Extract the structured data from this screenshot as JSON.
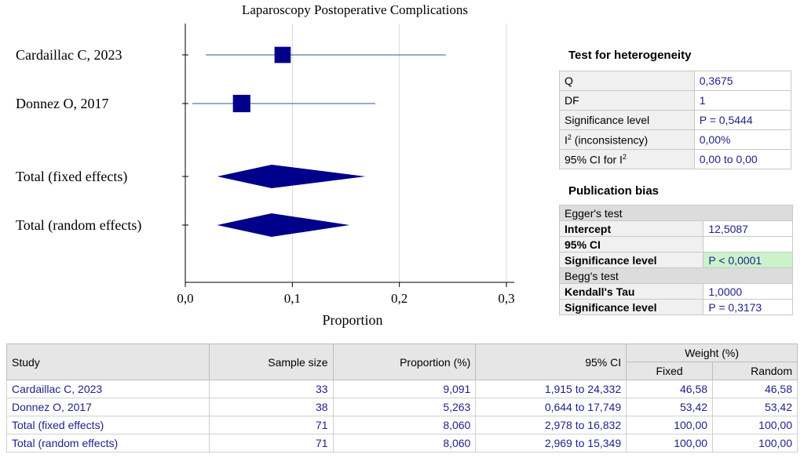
{
  "chart_data": {
    "type": "forest",
    "title": "Laparoscopy Postoperative Complications",
    "xlabel": "Proportion",
    "xlim": [
      0,
      0.3
    ],
    "xticks": [
      "0,0",
      "0,1",
      "0,2",
      "0,3"
    ],
    "xtick_values": [
      0,
      0.1,
      0.2,
      0.3
    ],
    "grid": true,
    "studies": [
      {
        "name": "Cardaillac C, 2023",
        "estimate": 0.09091,
        "lower": 0.01915,
        "upper": 0.24332,
        "weight": 46.58
      },
      {
        "name": "Donnez O, 2017",
        "estimate": 0.05263,
        "lower": 0.00644,
        "upper": 0.17749,
        "weight": 53.42
      }
    ],
    "pooled": [
      {
        "name": "Total (fixed effects)",
        "estimate": 0.0806,
        "lower": 0.02978,
        "upper": 0.16832
      },
      {
        "name": "Total (random effects)",
        "estimate": 0.0806,
        "lower": 0.02969,
        "upper": 0.15349
      }
    ]
  },
  "heterogeneity": {
    "header": "Test for heterogeneity",
    "rows": [
      {
        "label": "Q",
        "value": "0,3675"
      },
      {
        "label": "DF",
        "value": "1"
      },
      {
        "label": "Significance level",
        "value": "P = 0,5444"
      },
      {
        "label": "I",
        "label_sup": "2",
        "label_suffix": " (inconsistency)",
        "value": "0,00%"
      },
      {
        "label": "95% CI for I",
        "label_sup": "2",
        "label_suffix": "",
        "value": "0,00 to 0,00"
      }
    ]
  },
  "publication_bias": {
    "header": "Publication bias",
    "egger": {
      "title": "Egger's test",
      "intercept_label": "Intercept",
      "intercept": "12,5087",
      "ci_label": "95% CI",
      "ci": "",
      "sig_label": "Significance level",
      "sig": "P < 0,0001"
    },
    "begg": {
      "title": "Begg's test",
      "tau_label": "Kendall's Tau",
      "tau": "1,0000",
      "sig_label": "Significance level",
      "sig": "P = 0,3173"
    }
  },
  "table": {
    "headers": {
      "study": "Study",
      "sample": "Sample size",
      "proportion": "Proportion (%)",
      "ci": "95% CI",
      "weight": "Weight (%)",
      "fixed": "Fixed",
      "random": "Random"
    },
    "rows": [
      {
        "study": "Cardaillac C, 2023",
        "n": "33",
        "p": "9,091",
        "ci": "1,915 to 24,332",
        "fixed": "46,58",
        "random": "46,58"
      },
      {
        "study": "Donnez O, 2017",
        "n": "38",
        "p": "5,263",
        "ci": "0,644 to 17,749",
        "fixed": "53,42",
        "random": "53,42"
      },
      {
        "study": "Total (fixed effects)",
        "n": "71",
        "p": "8,060",
        "ci": "2,978 to 16,832",
        "fixed": "100,00",
        "random": "100,00"
      },
      {
        "study": "Total (random effects)",
        "n": "71",
        "p": "8,060",
        "ci": "2,969 to 15,349",
        "fixed": "100,00",
        "random": "100,00"
      }
    ]
  },
  "colors": {
    "marker": "#00008b",
    "line": "#2a5a8c",
    "grid": "#d8d8d8",
    "value_text": "#1f1f8a"
  }
}
